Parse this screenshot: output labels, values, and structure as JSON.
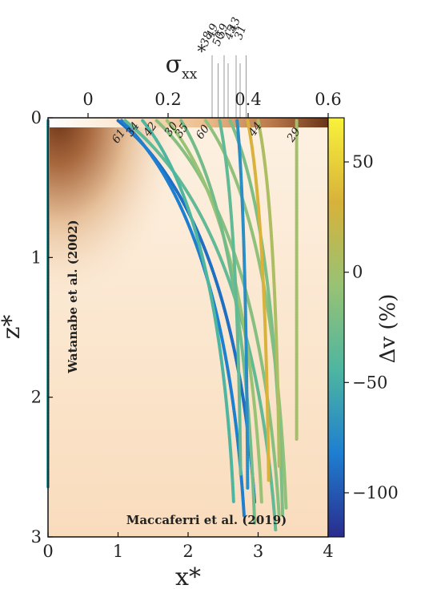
{
  "chart_data": {
    "type": "line",
    "xlabel": "x*",
    "ylabel": "z*",
    "top_axis_label": "σxx*",
    "top_axis_label_main": "σ",
    "top_axis_label_sub": "xx",
    "top_axis_label_sup": "*",
    "colorbar_label": "Δv (%)",
    "xlim": [
      0,
      4
    ],
    "ylim": [
      0,
      3
    ],
    "y_inverted": true,
    "x_ticks": [
      "0",
      "1",
      "2",
      "3",
      "4"
    ],
    "y_ticks": [
      "0",
      "1",
      "2",
      "3"
    ],
    "top_ticks": [
      "0",
      "0.2",
      "0.4",
      "0.6"
    ],
    "top_range": [
      -0.1,
      0.6
    ],
    "colorbar_range": [
      -120,
      70
    ],
    "colorbar_ticks": [
      "50",
      "0",
      "−50",
      "−100"
    ],
    "colorbar_tick_values": [
      50,
      0,
      -50,
      -100
    ],
    "annotations": {
      "watanabe": "Watanabe et al. (2002)",
      "maccaferri": "Maccaferri et al. (2019)"
    },
    "series": [
      {
        "x0": 0.0,
        "x1": 0.0,
        "z1": 2.65,
        "dv": -40
      },
      {
        "x0": 1.0,
        "x1": 2.95,
        "z1": 2.75,
        "dv": -80
      },
      {
        "x0": 1.05,
        "x1": 2.8,
        "z1": 2.85,
        "dv": -70
      },
      {
        "x0": 1.1,
        "x1": 3.25,
        "z1": 2.95,
        "dv": -20
      },
      {
        "x0": 1.35,
        "x1": 2.65,
        "z1": 2.75,
        "dv": -30
      },
      {
        "x0": 1.55,
        "x1": 3.3,
        "z1": 2.85,
        "dv": 0
      },
      {
        "x0": 1.7,
        "x1": 3.05,
        "z1": 2.75,
        "dv": 10
      },
      {
        "x0": 1.9,
        "x1": 2.95,
        "z1": 2.9,
        "dv": -10
      },
      {
        "x0": 2.25,
        "x1": 3.4,
        "z1": 2.8,
        "dv": 5
      },
      {
        "x0": 2.45,
        "x1": 2.75,
        "z1": 2.55,
        "dv": -20
      },
      {
        "x0": 2.6,
        "x1": 3.35,
        "z1": 2.85,
        "dv": -5
      },
      {
        "x0": 2.7,
        "x1": 2.85,
        "z1": 2.65,
        "dv": -60
      },
      {
        "x0": 2.85,
        "x1": 3.15,
        "z1": 2.6,
        "dv": 40
      },
      {
        "x0": 3.0,
        "x1": 3.3,
        "z1": 2.5,
        "dv": 20
      },
      {
        "x0": 3.55,
        "x1": 3.55,
        "z1": 2.3,
        "dv": 15
      }
    ],
    "top_ticks_extra": [
      "38",
      "49",
      "50",
      "59",
      "45",
      "43",
      "31"
    ],
    "curve_labels": [
      "61",
      "34",
      "42",
      "30",
      "35",
      "60",
      "44",
      "29"
    ]
  }
}
